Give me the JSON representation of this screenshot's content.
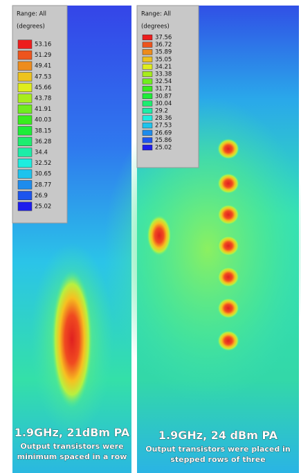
{
  "panels": [
    {
      "legend": {
        "title": "Range: All",
        "unit": "(degrees)",
        "values": [
          "53.16",
          "51.29",
          "49.41",
          "47.53",
          "45.66",
          "43.78",
          "41.91",
          "40.03",
          "38.15",
          "36.28",
          "34.4",
          "32.52",
          "30.65",
          "28.77",
          "26.9",
          "25.02"
        ]
      },
      "caption": {
        "title": "1.9GHz, 21dBm PA",
        "lines": [
          "Output transistors were",
          "minimum spaced in a row"
        ]
      }
    },
    {
      "legend": {
        "title": "Range: All",
        "unit": "(degrees)",
        "values": [
          "37.56",
          "36.72",
          "35.89",
          "35.05",
          "34.21",
          "33.38",
          "32.54",
          "31.71",
          "30.87",
          "30.04",
          "29.2",
          "28.36",
          "27.53",
          "26.69",
          "25.86",
          "25.02"
        ]
      },
      "caption": {
        "title": "1.9GHz, 24 dBm PA",
        "lines": [
          "Output transistors were placed in",
          "stepped rows of three"
        ]
      }
    }
  ]
}
